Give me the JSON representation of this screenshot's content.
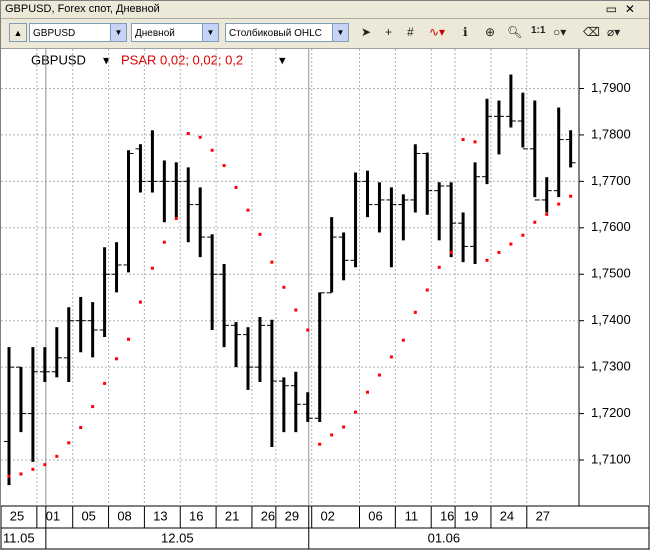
{
  "window": {
    "title": "GBPUSD, Forex спот, Дневной"
  },
  "toolbar": {
    "symbol": "GBPUSD",
    "timeframe": "Дневной",
    "chart_style": "Столбиковый OHLC",
    "zoom_label": "1:1"
  },
  "chart_data": {
    "type": "ohlc",
    "legend": {
      "symbol": "GBPUSD",
      "indicator": "PSAR 0,02; 0,02; 0,2"
    },
    "categories": [
      "25",
      null,
      null,
      "01",
      null,
      null,
      "05",
      null,
      null,
      "08",
      null,
      null,
      "13",
      null,
      null,
      "16",
      null,
      null,
      "21",
      null,
      null,
      "26",
      null,
      "29",
      null,
      null,
      "02",
      null,
      null,
      null,
      "06",
      null,
      null,
      "11",
      null,
      null,
      "16",
      null,
      "19",
      null,
      null,
      "24",
      null,
      null,
      "27",
      null,
      null,
      null
    ],
    "periods": [
      "11.05",
      "12.05",
      "01.06"
    ],
    "series": [
      {
        "name": "GBPUSD",
        "color": "#000000",
        "open": [
          1.714,
          1.73,
          1.72,
          1.729,
          1.729,
          1.732,
          1.74,
          1.74,
          1.738,
          1.75,
          1.752,
          1.777,
          1.77,
          1.77,
          1.77,
          1.77,
          1.765,
          1.758,
          1.75,
          1.739,
          1.737,
          1.73,
          1.739,
          1.727,
          1.726,
          1.722,
          1.719,
          1.746,
          1.758,
          1.753,
          1.77,
          1.765,
          1.766,
          1.765,
          1.766,
          1.776,
          1.768,
          1.769,
          1.761,
          1.756,
          1.771,
          1.784,
          1.784,
          1.783,
          1.777,
          1.766,
          1.768,
          1.779
        ],
        "high": [
          1.7343,
          1.73,
          1.7343,
          1.7343,
          1.7386,
          1.7429,
          1.7451,
          1.744,
          1.7558,
          1.7569,
          1.7767,
          1.778,
          1.781,
          1.7745,
          1.7741,
          1.773,
          1.7687,
          1.7586,
          1.7522,
          1.7397,
          1.7386,
          1.7408,
          1.7402,
          1.7278,
          1.729,
          1.7246,
          1.7461,
          1.7623,
          1.759,
          1.7719,
          1.7723,
          1.7698,
          1.7687,
          1.7672,
          1.778,
          1.7762,
          1.7698,
          1.7698,
          1.7633,
          1.7741,
          1.7878,
          1.7874,
          1.793,
          1.7891,
          1.7874,
          1.7709,
          1.7859,
          1.781
        ],
        "low": [
          1.7046,
          1.716,
          1.7096,
          1.7268,
          1.7278,
          1.7268,
          1.7332,
          1.7321,
          1.7365,
          1.7461,
          1.7504,
          1.7676,
          1.7676,
          1.7612,
          1.7623,
          1.7569,
          1.7537,
          1.738,
          1.7343,
          1.73,
          1.7251,
          1.7268,
          1.7128,
          1.716,
          1.716,
          1.7182,
          1.7182,
          1.7461,
          1.7487,
          1.7515,
          1.7623,
          1.759,
          1.7515,
          1.7573,
          1.7633,
          1.7628,
          1.7573,
          1.7537,
          1.7526,
          1.7522,
          1.7694,
          1.7758,
          1.7816,
          1.7773,
          1.7666,
          1.7633,
          1.7666,
          1.773
        ],
        "close": [
          1.73,
          1.72,
          1.729,
          1.729,
          1.732,
          1.74,
          1.74,
          1.738,
          1.75,
          1.752,
          1.776,
          1.77,
          1.77,
          1.77,
          1.77,
          1.765,
          1.758,
          1.75,
          1.739,
          1.737,
          1.73,
          1.739,
          1.727,
          1.726,
          1.722,
          1.719,
          1.746,
          1.758,
          1.753,
          1.77,
          1.765,
          1.766,
          1.765,
          1.766,
          1.776,
          1.768,
          1.769,
          1.761,
          1.756,
          1.771,
          1.784,
          1.784,
          1.783,
          1.777,
          1.766,
          1.768,
          1.779,
          1.774
        ]
      },
      {
        "name": "PSAR",
        "color": "#ff0000",
        "values": [
          1.7065,
          1.707,
          1.708,
          1.709,
          1.7108,
          1.7137,
          1.717,
          1.7215,
          1.7265,
          1.7318,
          1.736,
          1.744,
          1.7513,
          1.7569,
          1.762,
          1.7803,
          1.7795,
          1.7767,
          1.7734,
          1.7687,
          1.7638,
          1.7586,
          1.7526,
          1.7472,
          1.7423,
          1.738,
          1.7134,
          1.7154,
          1.7171,
          1.7203,
          1.7246,
          1.7283,
          1.7322,
          1.7358,
          1.7418,
          1.7466,
          1.7515,
          1.7547,
          1.779,
          1.7785,
          1.753,
          1.7547,
          1.7565,
          1.7584,
          1.7612,
          1.7629,
          1.7651,
          1.7668
        ]
      }
    ],
    "ylim": [
      1.7001,
      1.7985
    ],
    "yticks": [
      {
        "value": 1.71,
        "label": "1,7100"
      },
      {
        "value": 1.72,
        "label": "1,7200"
      },
      {
        "value": 1.73,
        "label": "1,7300"
      },
      {
        "value": 1.74,
        "label": "1,7400"
      },
      {
        "value": 1.75,
        "label": "1,7500"
      },
      {
        "value": 1.76,
        "label": "1,7600"
      },
      {
        "value": 1.77,
        "label": "1,7700"
      },
      {
        "value": 1.78,
        "label": "1,7800"
      },
      {
        "value": 1.79,
        "label": "1,7900"
      }
    ],
    "grid": true
  }
}
